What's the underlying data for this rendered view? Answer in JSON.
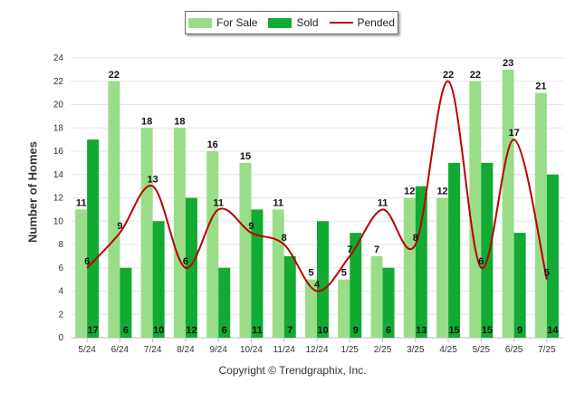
{
  "legend": {
    "for_sale": "For Sale",
    "sold": "Sold",
    "pended": "Pended"
  },
  "copyright": "Copyright © Trendgraphix, Inc.",
  "colors": {
    "for_sale": "#99dd88",
    "sold": "#11aa33",
    "pended": "#bb0000",
    "grid": "#e6e6e6"
  },
  "chart_data": {
    "type": "bar",
    "ylabel": "Number of Homes",
    "xlabel": "",
    "ylim": [
      0,
      24
    ],
    "yticks": [
      0,
      2,
      4,
      6,
      8,
      10,
      12,
      14,
      16,
      18,
      20,
      22,
      24
    ],
    "grid": true,
    "legend_position": "top-center",
    "categories": [
      "5/24",
      "6/24",
      "7/24",
      "8/24",
      "9/24",
      "10/24",
      "11/24",
      "12/24",
      "1/25",
      "2/25",
      "3/25",
      "4/25",
      "5/25",
      "6/25",
      "7/25"
    ],
    "series": [
      {
        "name": "For Sale",
        "type": "bar",
        "values": [
          11,
          22,
          18,
          18,
          16,
          15,
          11,
          5,
          5,
          7,
          12,
          12,
          22,
          23,
          21
        ]
      },
      {
        "name": "Sold",
        "type": "bar",
        "values": [
          17,
          6,
          10,
          12,
          6,
          11,
          7,
          10,
          9,
          6,
          13,
          15,
          15,
          9,
          14
        ]
      },
      {
        "name": "Pended",
        "type": "line",
        "values": [
          6,
          9,
          13,
          6,
          11,
          9,
          8,
          4,
          7,
          11,
          8,
          22,
          6,
          17,
          5
        ]
      }
    ]
  }
}
